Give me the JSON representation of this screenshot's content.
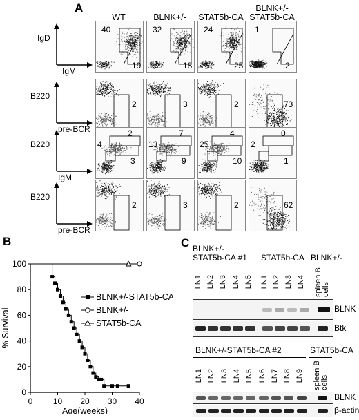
{
  "panelA": {
    "letter": "A",
    "columns": [
      "WT",
      "BLNK+/-",
      "STAT5b-CA",
      "BLNK+/- STAT5b-CA"
    ],
    "columns_line1": [
      "WT",
      "BLNK+/-",
      "STAT5b-CA",
      "BLNK+/-"
    ],
    "columns_line2": [
      "",
      "",
      "",
      "STAT5b-CA"
    ],
    "rows": [
      {
        "ylabel": "IgD",
        "xlabel": "IgM",
        "top_values": [
          "40",
          "32",
          "24",
          "1"
        ],
        "bottom_values": [
          "19",
          "18",
          "25",
          "2"
        ]
      },
      {
        "ylabel": "B220",
        "xlabel": "pre-BCR",
        "values": [
          "2",
          "3",
          "2",
          "73"
        ]
      },
      {
        "ylabel": "B220",
        "xlabel": "IgM",
        "left_values": [
          "4",
          "13",
          "25",
          "2"
        ],
        "upper_values": [
          "2",
          "7",
          "4",
          "0"
        ],
        "lower_values": [
          "3",
          "9",
          "10",
          "1"
        ]
      },
      {
        "ylabel": "B220",
        "xlabel": "pre-BCR",
        "values": [
          "2",
          "3",
          "2",
          "62"
        ]
      }
    ]
  },
  "panelB": {
    "letter": "B",
    "chart_data": {
      "type": "line",
      "xlabel": "Age(weeks)",
      "ylabel": "% Survival",
      "xlim": [
        0,
        40
      ],
      "ylim": [
        0,
        100
      ],
      "xticks": [
        "0",
        "10",
        "20",
        "30",
        "40"
      ],
      "yticks": [
        "0",
        "20",
        "40",
        "60",
        "80",
        "100"
      ],
      "series": [
        {
          "name": "BLNK+/-STAT5b-CA",
          "marker": "square",
          "x": [
            0,
            8,
            9,
            10,
            11,
            12,
            13,
            14,
            15,
            16,
            17,
            18,
            19,
            20,
            21,
            22,
            23,
            24,
            25,
            26,
            27,
            30,
            32,
            36
          ],
          "y": [
            100,
            90,
            85,
            80,
            75,
            70,
            65,
            60,
            55,
            50,
            45,
            40,
            35,
            30,
            25,
            20,
            15,
            12,
            10,
            10,
            5,
            5,
            5,
            5
          ]
        },
        {
          "name": "BLNK+/-",
          "marker": "circle",
          "x": [
            0,
            40
          ],
          "y": [
            100,
            100
          ]
        },
        {
          "name": "STAT5b-CA",
          "marker": "triangle",
          "x": [
            0,
            36
          ],
          "y": [
            100,
            100
          ]
        }
      ]
    }
  },
  "panelC": {
    "letter": "C",
    "top": {
      "groups": [
        {
          "line1": "BLNK+/-",
          "line2": "STAT5b-CA #1"
        },
        {
          "line1": "STAT5b-CA",
          "line2": ""
        },
        {
          "line1": "BLNK+/-",
          "line2": ""
        }
      ],
      "lanes_g1": [
        "LN1",
        "LN2",
        "LN3",
        "LN4",
        "LN5"
      ],
      "lanes_g2": [
        "LN1",
        "LN2",
        "LN3",
        "LN4"
      ],
      "lane_spleen": "spleen B cells",
      "blots": [
        "BLNK",
        "Btk"
      ]
    },
    "bottom": {
      "groups": [
        {
          "line1": "BLNK+/-STAT5b-CA #2"
        },
        {
          "line1": "STAT5b-CA"
        }
      ],
      "lanes": [
        "LN1",
        "LN2",
        "LN3",
        "LN4",
        "LN5",
        "LN6",
        "LN7",
        "LN8",
        "LN9"
      ],
      "lane_spleen": "spleen B cells",
      "blots": [
        "BLNK",
        "β-actin"
      ]
    }
  }
}
